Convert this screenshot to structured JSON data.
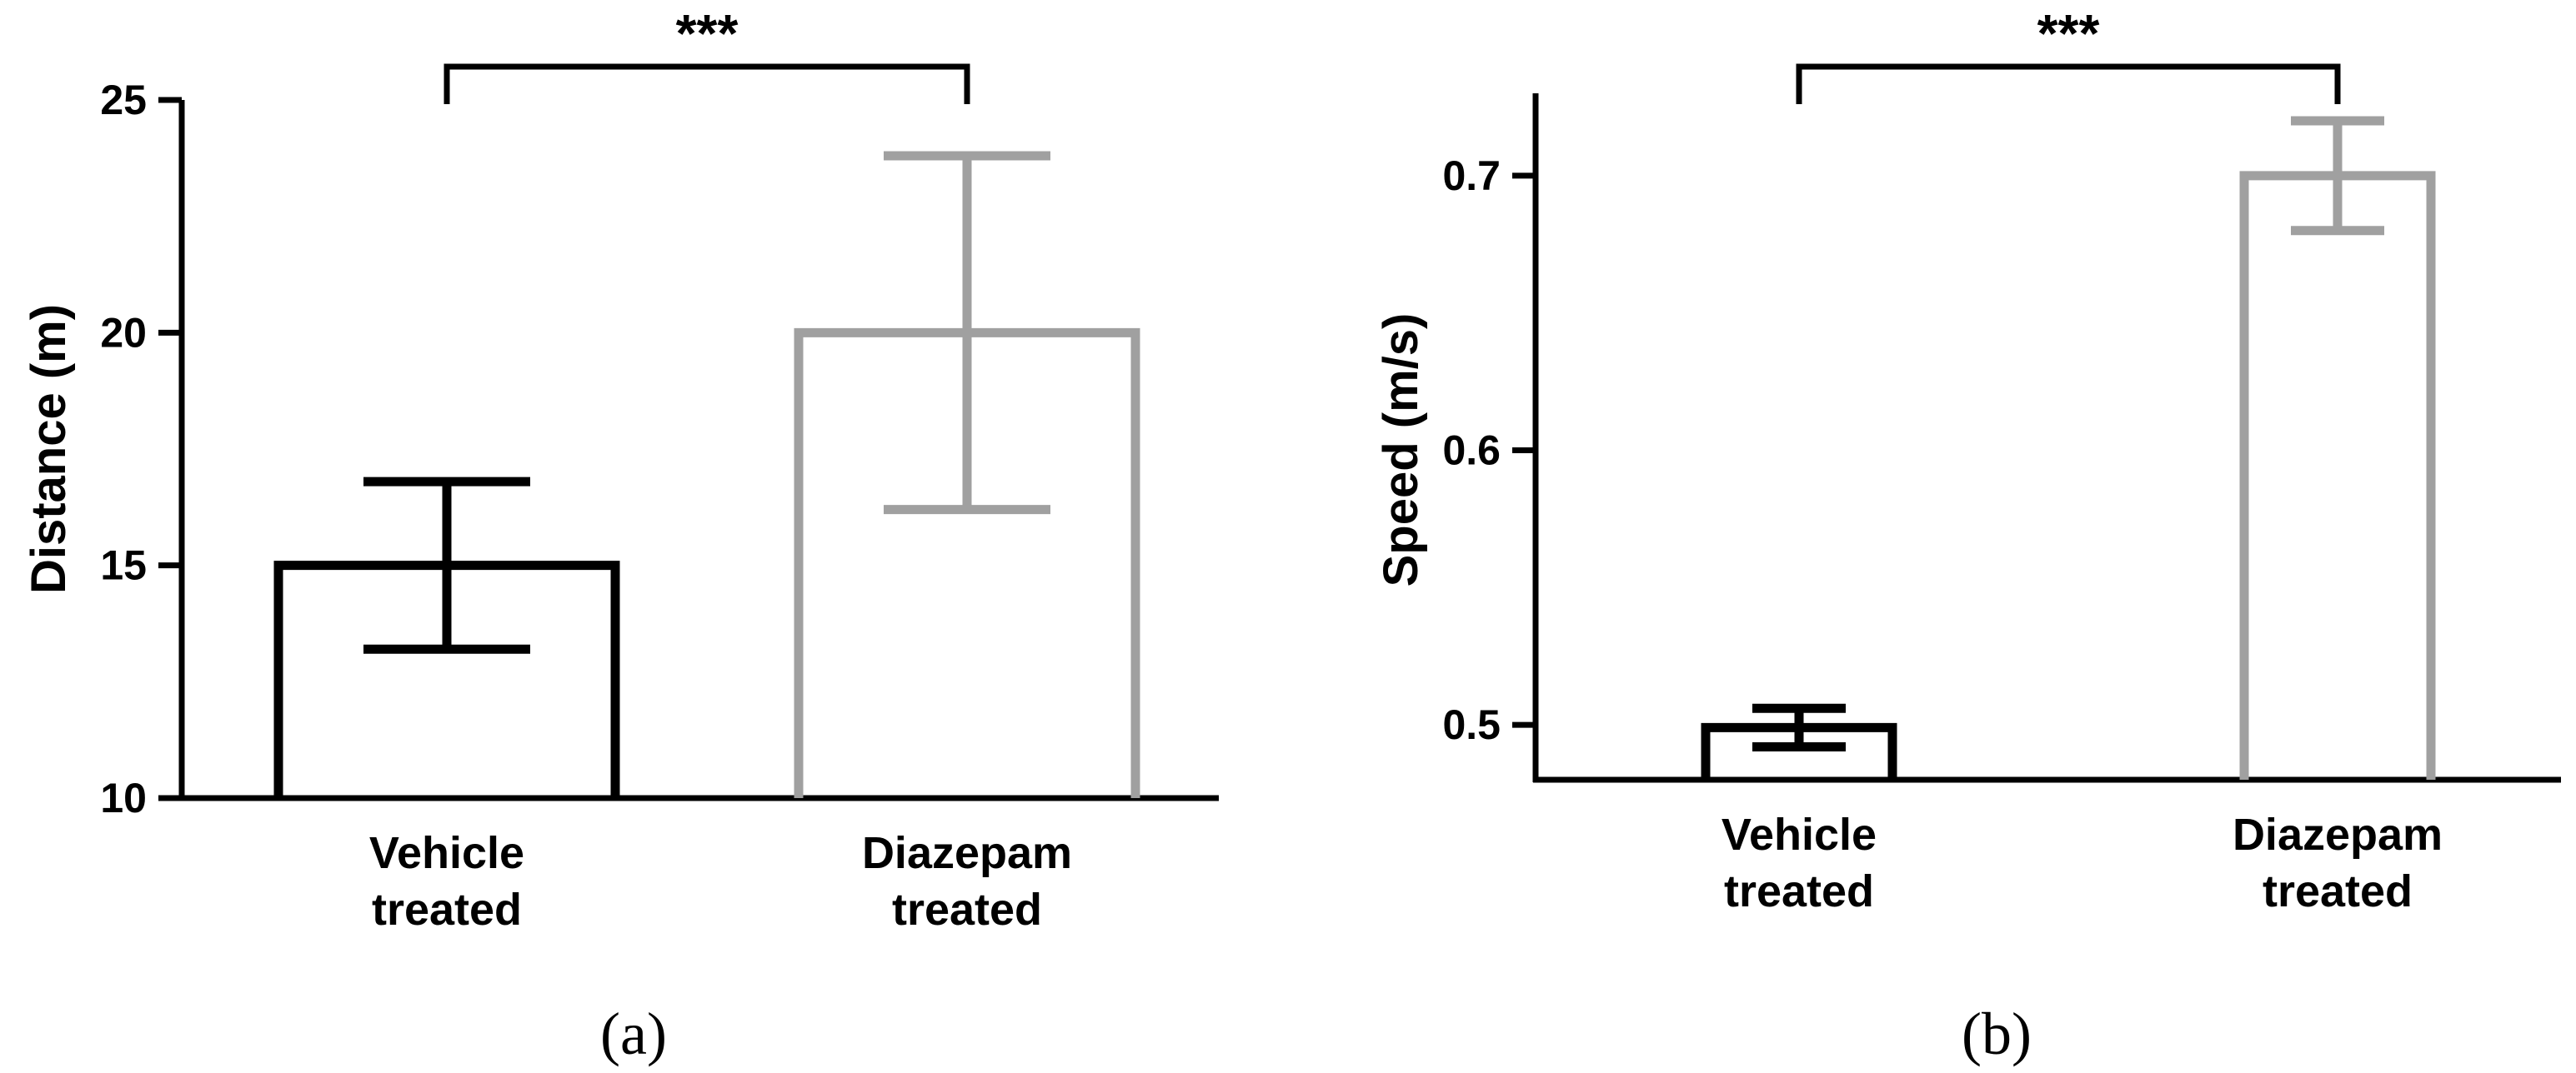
{
  "chart_data": [
    {
      "type": "bar",
      "panel_label": "(a)",
      "categories": [
        "Vehicle\ntreated",
        "Diazepam\ntreated"
      ],
      "series": [
        {
          "values": [
            15,
            20
          ],
          "errors": [
            1.8,
            3.8
          ]
        }
      ],
      "bar_colors": [
        "#000000",
        "#a0a0a0"
      ],
      "bar_fill": "none",
      "ylabel": "Distance (m)",
      "xlabel": "",
      "ylim": [
        10,
        25
      ],
      "yticks": [
        10,
        15,
        20,
        25
      ],
      "significance": {
        "from": 0,
        "to": 1,
        "label": "***"
      },
      "grid": false
    },
    {
      "type": "bar",
      "panel_label": "(b)",
      "categories": [
        "Vehicle\ntreated",
        "Diazepam\ntreated"
      ],
      "series": [
        {
          "values": [
            0.499,
            0.7
          ],
          "errors": [
            0.007,
            0.02
          ]
        }
      ],
      "bar_colors": [
        "#000000",
        "#a0a0a0"
      ],
      "bar_fill": "none",
      "ylabel": "Speed (m/s)",
      "xlabel": "",
      "ylim": [
        0.48,
        0.73
      ],
      "yticks": [
        0.5,
        0.6,
        0.7
      ],
      "significance": {
        "from": 0,
        "to": 1,
        "label": "***"
      },
      "grid": false
    }
  ]
}
